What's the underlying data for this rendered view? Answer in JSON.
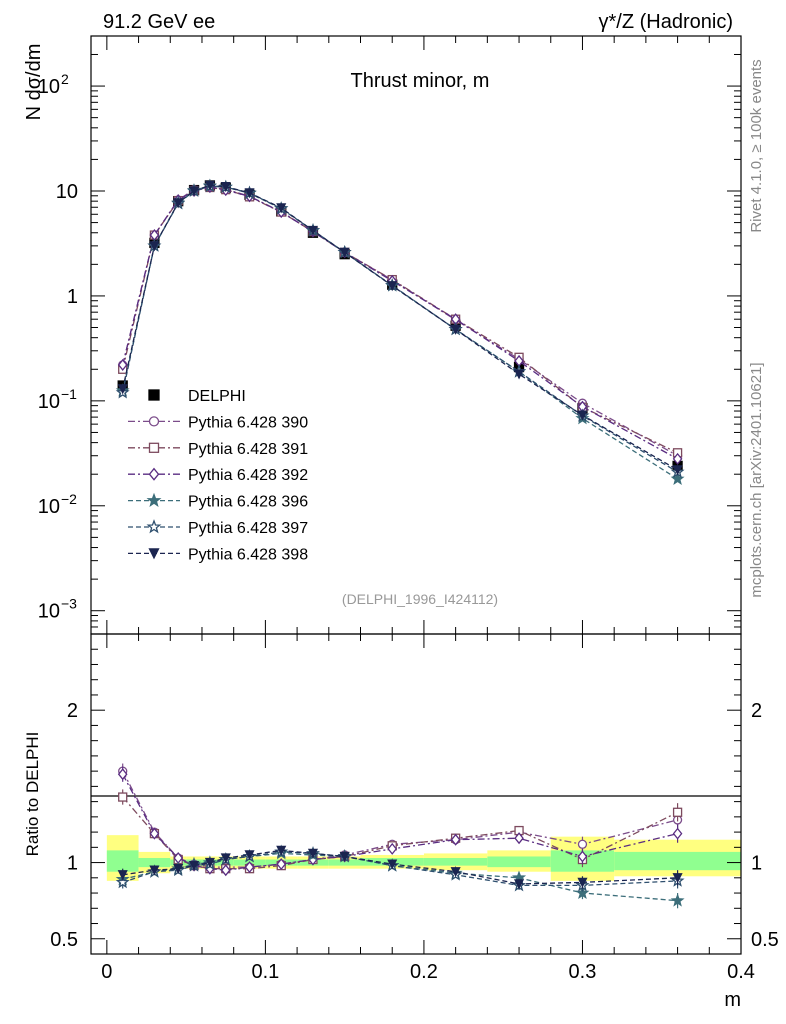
{
  "header": {
    "left_label": "91.2 GeV ee",
    "right_label": "γ*/Z (Hadronic)"
  },
  "side": {
    "rivet_label": "Rivet 4.1.0, ≥ 100k events",
    "mcplots_label": "mcplots.cern.ch [arXiv:2401.10621]"
  },
  "colors": {
    "data": "#000000",
    "p390": "#7b4c8a",
    "p391": "#7d4a5e",
    "p392": "#5a2d82",
    "p396": "#3c6e7a",
    "p397": "#2e4f6e",
    "p398": "#1b2550",
    "band_yellow": "#ffff80",
    "band_green": "#90ff90"
  },
  "chart_data": [
    {
      "type": "line",
      "title": "Thrust minor, m",
      "ylabel": "N  dσ/dm",
      "yscale": "log",
      "xlim": [
        -0.01,
        0.4
      ],
      "ylim": [
        0.0006,
        300
      ],
      "analysis_tag": "(DELPHI_1996_I424112)",
      "y_ticks": [
        {
          "value": 0.001,
          "base": "10",
          "exp": "−3"
        },
        {
          "value": 0.01,
          "base": "10",
          "exp": "−2"
        },
        {
          "value": 0.1,
          "base": "10",
          "exp": "−1"
        },
        {
          "value": 1,
          "base": "1",
          "exp": ""
        },
        {
          "value": 10,
          "base": "10",
          "exp": ""
        },
        {
          "value": 100,
          "base": "10",
          "exp": "2"
        }
      ],
      "x": [
        0.01,
        0.03,
        0.045,
        0.055,
        0.065,
        0.075,
        0.09,
        0.11,
        0.13,
        0.15,
        0.18,
        0.22,
        0.26,
        0.3,
        0.36
      ],
      "series": [
        {
          "name": "DELPHI",
          "marker": "square-filled",
          "color_key": "data",
          "values": [
            0.14,
            3.2,
            8.0,
            10.2,
            11.3,
            10.7,
            9.2,
            6.4,
            4.0,
            2.5,
            1.28,
            0.52,
            0.21,
            0.085,
            0.024
          ]
        },
        {
          "name": "Pythia 6.428 390",
          "marker": "circle-open",
          "color_key": "p390",
          "values": [
            0.22,
            3.8,
            8.2,
            10.3,
            10.9,
            10.4,
            8.9,
            6.35,
            4.1,
            2.6,
            1.42,
            0.59,
            0.25,
            0.095,
            0.03
          ]
        },
        {
          "name": "Pythia 6.428 391",
          "marker": "square-open",
          "color_key": "p391",
          "values": [
            0.2,
            3.8,
            8.1,
            10.1,
            10.8,
            10.3,
            8.8,
            6.3,
            4.1,
            2.6,
            1.43,
            0.6,
            0.26,
            0.087,
            0.032
          ]
        },
        {
          "name": "Pythia 6.428 392",
          "marker": "diamond-open",
          "color_key": "p392",
          "values": [
            0.22,
            3.8,
            8.2,
            10.0,
            10.9,
            10.2,
            8.9,
            6.3,
            4.1,
            2.6,
            1.39,
            0.6,
            0.24,
            0.088,
            0.028
          ]
        },
        {
          "name": "Pythia 6.428 396",
          "marker": "star-filled",
          "color_key": "p396",
          "values": [
            0.125,
            3.0,
            7.7,
            10.1,
            11.2,
            10.9,
            9.5,
            6.8,
            4.2,
            2.6,
            1.25,
            0.48,
            0.19,
            0.068,
            0.018
          ]
        },
        {
          "name": "Pythia 6.428 397",
          "marker": "star-open",
          "color_key": "p397",
          "values": [
            0.12,
            3.0,
            7.6,
            10.0,
            11.1,
            10.9,
            9.6,
            6.8,
            4.2,
            2.6,
            1.26,
            0.48,
            0.19,
            0.072,
            0.021
          ]
        },
        {
          "name": "Pythia 6.428 398",
          "marker": "triangle-down-filled",
          "color_key": "p398",
          "values": [
            0.13,
            3.0,
            7.7,
            10.0,
            11.3,
            11.0,
            9.6,
            6.9,
            4.2,
            2.6,
            1.25,
            0.48,
            0.18,
            0.073,
            0.022
          ]
        }
      ]
    },
    {
      "type": "line",
      "ylabel": "Ratio to DELPHI",
      "xlabel": "m",
      "xlim": [
        -0.01,
        0.4
      ],
      "ylim": [
        0.4,
        2.5
      ],
      "x_ticks": [
        "0",
        "0.1",
        "0.2",
        "0.3",
        "0.4"
      ],
      "y_ticks": [
        {
          "value": 0.5,
          "label": "0.5"
        },
        {
          "value": 1,
          "label": "1"
        },
        {
          "value": 2,
          "label": "2"
        }
      ],
      "bins": [
        {
          "lo": 0.0,
          "hi": 0.02,
          "yellow": [
            0.88,
            1.18
          ],
          "green": [
            0.94,
            1.08
          ]
        },
        {
          "lo": 0.02,
          "hi": 0.04,
          "yellow": [
            0.93,
            1.07
          ],
          "green": [
            0.97,
            1.03
          ]
        },
        {
          "lo": 0.04,
          "hi": 0.05,
          "yellow": [
            0.96,
            1.04
          ],
          "green": [
            0.98,
            1.02
          ]
        },
        {
          "lo": 0.05,
          "hi": 0.06,
          "yellow": [
            0.96,
            1.04
          ],
          "green": [
            0.98,
            1.02
          ]
        },
        {
          "lo": 0.06,
          "hi": 0.07,
          "yellow": [
            0.96,
            1.04
          ],
          "green": [
            0.98,
            1.02
          ]
        },
        {
          "lo": 0.07,
          "hi": 0.08,
          "yellow": [
            0.96,
            1.04
          ],
          "green": [
            0.98,
            1.02
          ]
        },
        {
          "lo": 0.08,
          "hi": 0.1,
          "yellow": [
            0.96,
            1.04
          ],
          "green": [
            0.98,
            1.02
          ]
        },
        {
          "lo": 0.1,
          "hi": 0.12,
          "yellow": [
            0.96,
            1.04
          ],
          "green": [
            0.98,
            1.02
          ]
        },
        {
          "lo": 0.12,
          "hi": 0.14,
          "yellow": [
            0.96,
            1.04
          ],
          "green": [
            0.98,
            1.02
          ]
        },
        {
          "lo": 0.14,
          "hi": 0.16,
          "yellow": [
            0.96,
            1.04
          ],
          "green": [
            0.98,
            1.02
          ]
        },
        {
          "lo": 0.16,
          "hi": 0.2,
          "yellow": [
            0.96,
            1.05
          ],
          "green": [
            0.98,
            1.03
          ]
        },
        {
          "lo": 0.2,
          "hi": 0.24,
          "yellow": [
            0.95,
            1.06
          ],
          "green": [
            0.98,
            1.03
          ]
        },
        {
          "lo": 0.24,
          "hi": 0.28,
          "yellow": [
            0.94,
            1.08
          ],
          "green": [
            0.97,
            1.04
          ]
        },
        {
          "lo": 0.28,
          "hi": 0.32,
          "yellow": [
            0.88,
            1.17
          ],
          "green": [
            0.94,
            1.08
          ]
        },
        {
          "lo": 0.32,
          "hi": 0.4,
          "yellow": [
            0.91,
            1.15
          ],
          "green": [
            0.95,
            1.07
          ]
        }
      ],
      "series": [
        {
          "name": "Pythia 6.428 390",
          "color_key": "p390",
          "marker": "circle-open",
          "values": [
            1.6,
            1.2,
            1.03,
            0.99,
            0.97,
            0.97,
            0.97,
            0.99,
            1.02,
            1.05,
            1.12,
            1.15,
            1.2,
            1.12,
            1.28
          ],
          "errors": [
            0.05,
            0.02,
            0.01,
            0.01,
            0.01,
            0.01,
            0.01,
            0.01,
            0.01,
            0.01,
            0.01,
            0.02,
            0.03,
            0.05,
            0.06
          ]
        },
        {
          "name": "Pythia 6.428 391",
          "color_key": "p391",
          "marker": "square-open",
          "values": [
            1.43,
            1.19,
            1.02,
            0.98,
            0.96,
            0.96,
            0.96,
            0.98,
            1.02,
            1.04,
            1.11,
            1.16,
            1.21,
            1.02,
            1.33
          ],
          "errors": [
            0.05,
            0.02,
            0.01,
            0.01,
            0.01,
            0.01,
            0.01,
            0.01,
            0.01,
            0.01,
            0.01,
            0.02,
            0.03,
            0.05,
            0.06
          ]
        },
        {
          "name": "Pythia 6.428 392",
          "color_key": "p392",
          "marker": "diamond-open",
          "values": [
            1.58,
            1.19,
            1.03,
            0.98,
            0.96,
            0.95,
            0.97,
            0.99,
            1.02,
            1.04,
            1.09,
            1.15,
            1.16,
            1.04,
            1.19
          ],
          "errors": [
            0.05,
            0.02,
            0.01,
            0.01,
            0.01,
            0.01,
            0.01,
            0.01,
            0.01,
            0.01,
            0.01,
            0.02,
            0.03,
            0.05,
            0.06
          ]
        },
        {
          "name": "Pythia 6.428 396",
          "color_key": "p396",
          "marker": "star-filled",
          "values": [
            0.89,
            0.94,
            0.96,
            0.99,
            1.0,
            1.02,
            1.04,
            1.06,
            1.05,
            1.04,
            0.98,
            0.93,
            0.9,
            0.8,
            0.75
          ],
          "errors": [
            0.04,
            0.02,
            0.01,
            0.01,
            0.01,
            0.01,
            0.01,
            0.01,
            0.01,
            0.01,
            0.01,
            0.02,
            0.03,
            0.04,
            0.05
          ]
        },
        {
          "name": "Pythia 6.428 397",
          "color_key": "p397",
          "marker": "star-open",
          "values": [
            0.87,
            0.94,
            0.95,
            0.98,
            0.99,
            1.02,
            1.04,
            1.07,
            1.06,
            1.04,
            0.98,
            0.92,
            0.85,
            0.85,
            0.88
          ],
          "errors": [
            0.04,
            0.02,
            0.01,
            0.01,
            0.01,
            0.01,
            0.01,
            0.01,
            0.01,
            0.01,
            0.01,
            0.02,
            0.03,
            0.04,
            0.05
          ]
        },
        {
          "name": "Pythia 6.428 398",
          "color_key": "p398",
          "marker": "triangle-down-filled",
          "values": [
            0.92,
            0.95,
            0.96,
            0.98,
            1.0,
            1.03,
            1.05,
            1.08,
            1.06,
            1.04,
            0.99,
            0.94,
            0.86,
            0.87,
            0.9
          ],
          "errors": [
            0.04,
            0.02,
            0.01,
            0.01,
            0.01,
            0.01,
            0.01,
            0.01,
            0.01,
            0.01,
            0.01,
            0.02,
            0.03,
            0.04,
            0.05
          ]
        }
      ]
    }
  ]
}
